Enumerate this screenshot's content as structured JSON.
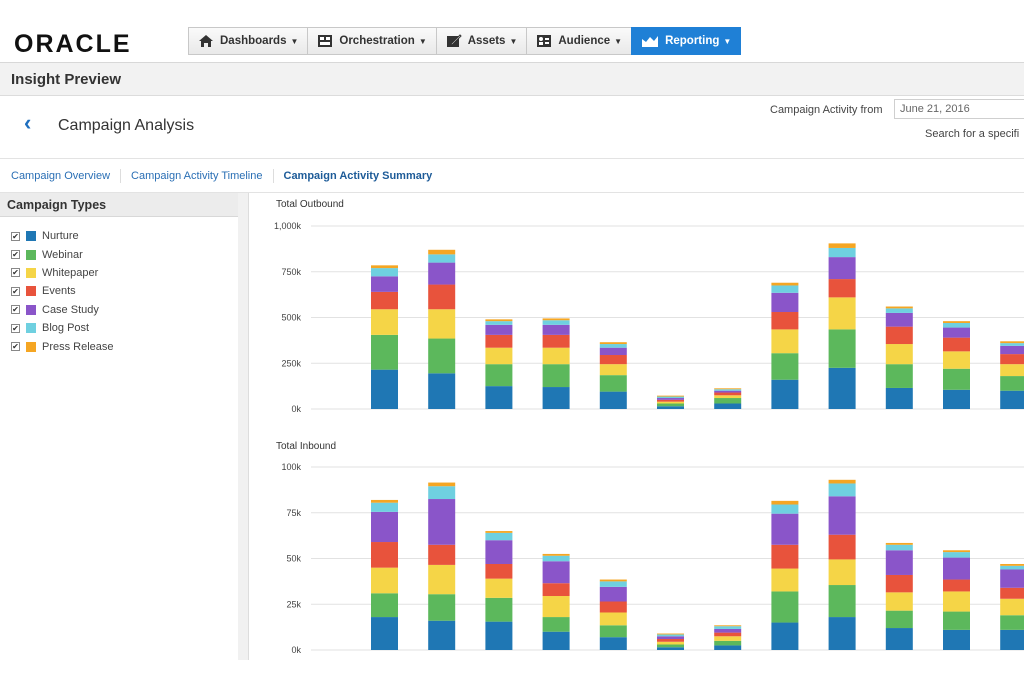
{
  "brand": {
    "logo": "ORACLE"
  },
  "nav": [
    {
      "label": "Dashboards",
      "icon": "home-icon"
    },
    {
      "label": "Orchestration",
      "icon": "orchestration-icon"
    },
    {
      "label": "Assets",
      "icon": "assets-icon"
    },
    {
      "label": "Audience",
      "icon": "audience-icon"
    },
    {
      "label": "Reporting",
      "icon": "reporting-icon",
      "active": true
    }
  ],
  "header": {
    "section": "Insight Preview",
    "title": "Campaign Analysis"
  },
  "filter": {
    "activity_label": "Campaign Activity from",
    "date": "June 21, 2016",
    "search_hint": "Search for a specifi"
  },
  "tabs": [
    "Campaign Overview",
    "Campaign Activity Timeline",
    "Campaign Activity Summary"
  ],
  "sidebar": {
    "title": "Campaign Types",
    "types": [
      {
        "label": "Nurture",
        "color": "#1f77b4",
        "checked": true
      },
      {
        "label": "Webinar",
        "color": "#5cb85c",
        "checked": true
      },
      {
        "label": "Whitepaper",
        "color": "#f5d547",
        "checked": true
      },
      {
        "label": "Events",
        "color": "#e8533c",
        "checked": true
      },
      {
        "label": "Case Study",
        "color": "#8a55c9",
        "checked": true
      },
      {
        "label": "Blog Post",
        "color": "#6fd0e0",
        "checked": true
      },
      {
        "label": "Press Release",
        "color": "#f5a623",
        "checked": true
      }
    ]
  },
  "chart_data": [
    {
      "type": "bar",
      "stacked": true,
      "title": "Total Outbound",
      "ylim": [
        0,
        1000000
      ],
      "yticks": [
        "0k",
        "250k",
        "500k",
        "750k",
        "1,000k"
      ],
      "grid": true,
      "series": [
        {
          "name": "Nurture",
          "values": [
            215000,
            195000,
            125000,
            120000,
            95000,
            15000,
            30000,
            160000,
            225000,
            115000,
            105000,
            100000
          ]
        },
        {
          "name": "Webinar",
          "values": [
            190000,
            190000,
            120000,
            125000,
            90000,
            15000,
            30000,
            145000,
            210000,
            130000,
            115000,
            80000
          ]
        },
        {
          "name": "Whitepaper",
          "values": [
            140000,
            160000,
            90000,
            90000,
            60000,
            10000,
            15000,
            130000,
            175000,
            110000,
            95000,
            65000
          ]
        },
        {
          "name": "Events",
          "values": [
            95000,
            135000,
            70000,
            70000,
            50000,
            10000,
            15000,
            95000,
            100000,
            95000,
            75000,
            55000
          ]
        },
        {
          "name": "Case Study",
          "values": [
            85000,
            120000,
            55000,
            55000,
            40000,
            10000,
            10000,
            105000,
            120000,
            75000,
            55000,
            45000
          ]
        },
        {
          "name": "Blog Post",
          "values": [
            45000,
            45000,
            20000,
            25000,
            20000,
            8000,
            8000,
            40000,
            50000,
            25000,
            25000,
            15000
          ]
        },
        {
          "name": "Press Release",
          "values": [
            15000,
            25000,
            10000,
            10000,
            10000,
            5000,
            5000,
            15000,
            25000,
            10000,
            10000,
            10000
          ]
        }
      ]
    },
    {
      "type": "bar",
      "stacked": true,
      "title": "Total Inbound",
      "ylim": [
        0,
        100000
      ],
      "yticks": [
        "0k",
        "25k",
        "50k",
        "75k",
        "100k"
      ],
      "grid": true,
      "series": [
        {
          "name": "Nurture",
          "values": [
            18000,
            16000,
            15500,
            10000,
            7000,
            1500,
            2500,
            15000,
            18000,
            12000,
            11000,
            11000
          ]
        },
        {
          "name": "Webinar",
          "values": [
            13000,
            14500,
            13000,
            8000,
            6500,
            1500,
            2500,
            17000,
            17500,
            9500,
            10000,
            8000
          ]
        },
        {
          "name": "Whitepaper",
          "values": [
            14000,
            16000,
            10500,
            11500,
            7000,
            1500,
            2500,
            12500,
            14000,
            10000,
            11000,
            9000
          ]
        },
        {
          "name": "Events",
          "values": [
            14000,
            11000,
            8000,
            7000,
            6000,
            1500,
            2000,
            13000,
            13500,
            9500,
            6500,
            6000
          ]
        },
        {
          "name": "Case Study",
          "values": [
            16500,
            25000,
            13000,
            12000,
            8000,
            1500,
            2000,
            17000,
            21000,
            13500,
            12000,
            10000
          ]
        },
        {
          "name": "Blog Post",
          "values": [
            5000,
            7000,
            4000,
            3000,
            3000,
            1000,
            1500,
            5000,
            7000,
            3000,
            3000,
            2000
          ]
        },
        {
          "name": "Press Release",
          "values": [
            1500,
            2000,
            1000,
            1000,
            1000,
            500,
            500,
            2000,
            2000,
            1000,
            1000,
            1000
          ]
        }
      ]
    }
  ]
}
